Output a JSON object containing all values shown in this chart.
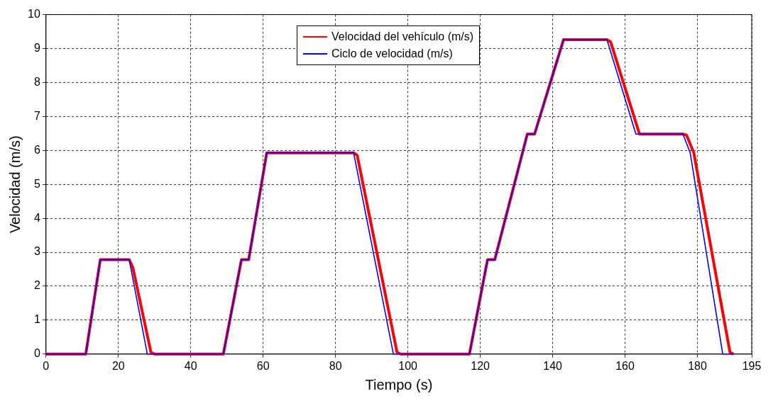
{
  "chart_data": {
    "type": "line",
    "xlabel": "Tiempo (s)",
    "ylabel": "Velocidad (m/s)",
    "xlim": [
      0,
      195
    ],
    "xticks": [
      0,
      20,
      40,
      60,
      80,
      100,
      120,
      140,
      160,
      180,
      195
    ],
    "ylim": [
      0,
      10
    ],
    "yticks": [
      0,
      1,
      2,
      3,
      4,
      5,
      6,
      7,
      8,
      9,
      10
    ],
    "grid": true,
    "legend": "top",
    "marker": "none",
    "line_style": "solid",
    "series": [
      {
        "name": "Velocidad del vehículo (m/s)",
        "color": "#ff0000",
        "x": [
          0,
          11,
          15,
          23,
          24,
          29,
          30,
          49,
          54,
          56,
          61,
          85,
          86,
          97,
          98,
          117,
          122,
          124,
          133,
          135,
          143,
          155,
          156,
          164,
          176,
          177,
          179,
          189,
          190
        ],
        "values": [
          0,
          0,
          2.78,
          2.78,
          2.55,
          0.05,
          0,
          0,
          2.78,
          2.78,
          5.93,
          5.93,
          5.85,
          0.05,
          0,
          0,
          2.78,
          2.78,
          6.48,
          6.48,
          9.26,
          9.26,
          9.2,
          6.48,
          6.48,
          6.45,
          5.93,
          0.05,
          0
        ]
      },
      {
        "name": "Ciclo de velocidad (m/s)",
        "color": "#0000ff",
        "x": [
          0,
          11,
          15,
          23,
          28,
          49,
          54,
          56,
          61,
          85,
          96,
          117,
          122,
          124,
          133,
          135,
          143,
          155,
          163,
          176,
          178,
          187,
          190
        ],
        "values": [
          0,
          0,
          2.78,
          2.78,
          0,
          0,
          2.78,
          2.78,
          5.93,
          5.93,
          0,
          0,
          2.78,
          2.78,
          6.48,
          6.48,
          9.26,
          9.26,
          6.48,
          6.48,
          5.93,
          0,
          0
        ]
      }
    ]
  }
}
